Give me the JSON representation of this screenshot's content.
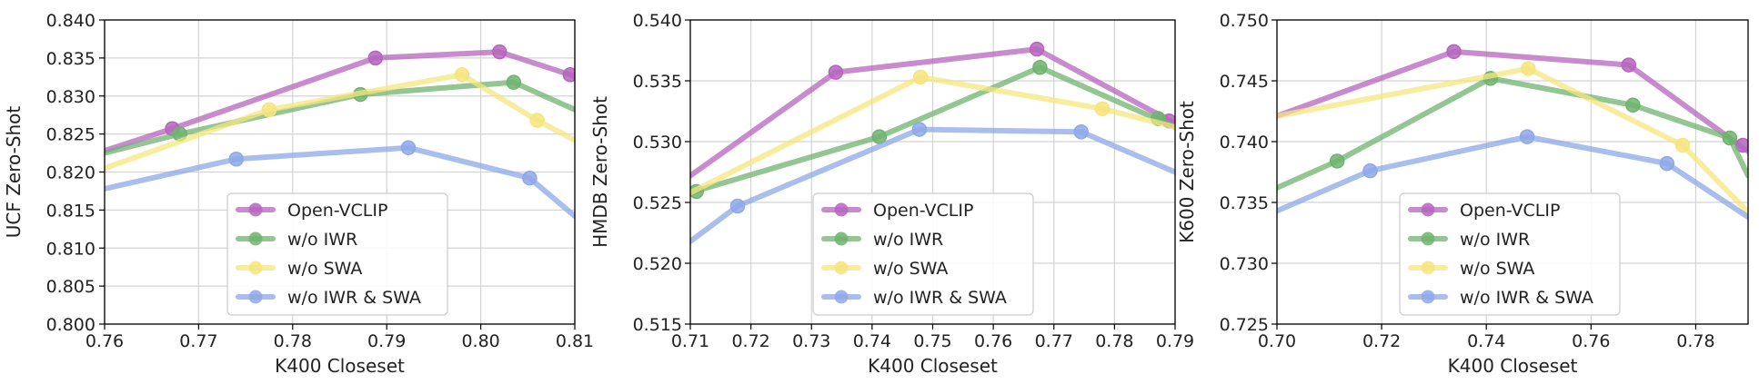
{
  "chart_data": [
    {
      "type": "line",
      "xlabel": "K400 Closeset",
      "ylabel": "UCF Zero-Shot",
      "xlim": [
        0.76,
        0.81
      ],
      "ylim": [
        0.8,
        0.84
      ],
      "xticks": [
        0.76,
        0.77,
        0.78,
        0.79,
        0.8,
        0.81
      ],
      "xtick_labels": [
        "0.76",
        "0.77",
        "0.78",
        "0.79",
        "0.80",
        "0.81"
      ],
      "yticks": [
        0.8,
        0.805,
        0.81,
        0.815,
        0.82,
        0.825,
        0.83,
        0.835,
        0.84
      ],
      "ytick_labels": [
        "0.800",
        "0.805",
        "0.810",
        "0.815",
        "0.820",
        "0.825",
        "0.830",
        "0.835",
        "0.840"
      ],
      "grid": true,
      "legend_position": "lower-center",
      "series": [
        {
          "name": "Open-VCLIP",
          "color": "#b565bd",
          "line": [
            [
              0.76,
              0.8228
            ],
            [
              0.7672,
              0.8257
            ],
            [
              0.7888,
              0.835
            ],
            [
              0.802,
              0.8358
            ],
            [
              0.8095,
              0.8328
            ],
            [
              0.811,
              0.832
            ]
          ],
          "points": [
            [
              0.7672,
              0.8257
            ],
            [
              0.7888,
              0.835
            ],
            [
              0.802,
              0.8358
            ],
            [
              0.8095,
              0.8328
            ]
          ]
        },
        {
          "name": "w/o IWR",
          "color": "#6fb36f",
          "line": [
            [
              0.76,
              0.8225
            ],
            [
              0.768,
              0.825
            ],
            [
              0.7872,
              0.8302
            ],
            [
              0.8035,
              0.8318
            ],
            [
              0.81,
              0.8282
            ]
          ],
          "points": [
            [
              0.768,
              0.825
            ],
            [
              0.7872,
              0.8302
            ],
            [
              0.8035,
              0.8318
            ]
          ]
        },
        {
          "name": "w/o SWA",
          "color": "#f6e57e",
          "line": [
            [
              0.76,
              0.8205
            ],
            [
              0.7775,
              0.8282
            ],
            [
              0.798,
              0.8328
            ],
            [
              0.806,
              0.8268
            ],
            [
              0.81,
              0.8242
            ]
          ],
          "points": [
            [
              0.7775,
              0.8282
            ],
            [
              0.798,
              0.8328
            ],
            [
              0.806,
              0.8268
            ]
          ]
        },
        {
          "name": "w/o IWR & SWA",
          "color": "#8ea8e8",
          "line": [
            [
              0.76,
              0.8178
            ],
            [
              0.774,
              0.8217
            ],
            [
              0.7923,
              0.8232
            ],
            [
              0.8052,
              0.8192
            ],
            [
              0.81,
              0.8142
            ]
          ],
          "points": [
            [
              0.774,
              0.8217
            ],
            [
              0.7923,
              0.8232
            ],
            [
              0.8052,
              0.8192
            ]
          ]
        }
      ]
    },
    {
      "type": "line",
      "xlabel": "K400 Closeset",
      "ylabel": "HMDB Zero-Shot",
      "xlim": [
        0.71,
        0.79
      ],
      "ylim": [
        0.515,
        0.54
      ],
      "xticks": [
        0.71,
        0.72,
        0.73,
        0.74,
        0.75,
        0.76,
        0.77,
        0.78,
        0.79
      ],
      "xtick_labels": [
        "0.71",
        "0.72",
        "0.73",
        "0.74",
        "0.75",
        "0.76",
        "0.77",
        "0.78",
        "0.79"
      ],
      "yticks": [
        0.515,
        0.52,
        0.525,
        0.53,
        0.535,
        0.54
      ],
      "ytick_labels": [
        "0.515",
        "0.520",
        "0.525",
        "0.530",
        "0.535",
        "0.540"
      ],
      "grid": true,
      "legend_position": "lower-center",
      "series": [
        {
          "name": "Open-VCLIP",
          "color": "#b565bd",
          "line": [
            [
              0.71,
              0.5272
            ],
            [
              0.734,
              0.5357
            ],
            [
              0.7672,
              0.5376
            ],
            [
              0.79,
              0.5315
            ]
          ],
          "points": [
            [
              0.734,
              0.5357
            ],
            [
              0.7672,
              0.5376
            ],
            [
              0.789,
              0.5317
            ]
          ]
        },
        {
          "name": "w/o IWR",
          "color": "#6fb36f",
          "line": [
            [
              0.71,
              0.5258
            ],
            [
              0.7412,
              0.5304
            ],
            [
              0.7677,
              0.5361
            ],
            [
              0.79,
              0.5312
            ]
          ],
          "points": [
            [
              0.711,
              0.5259
            ],
            [
              0.7412,
              0.5304
            ],
            [
              0.7677,
              0.5361
            ],
            [
              0.7872,
              0.5319
            ]
          ]
        },
        {
          "name": "w/o SWA",
          "color": "#f6e57e",
          "line": [
            [
              0.71,
              0.5258
            ],
            [
              0.748,
              0.5353
            ],
            [
              0.778,
              0.5327
            ],
            [
              0.79,
              0.5312
            ]
          ],
          "points": [
            [
              0.748,
              0.5353
            ],
            [
              0.778,
              0.5327
            ]
          ]
        },
        {
          "name": "w/o IWR & SWA",
          "color": "#8ea8e8",
          "line": [
            [
              0.71,
              0.5218
            ],
            [
              0.7178,
              0.5247
            ],
            [
              0.7478,
              0.531
            ],
            [
              0.7745,
              0.5308
            ],
            [
              0.79,
              0.5275
            ]
          ],
          "points": [
            [
              0.7178,
              0.5247
            ],
            [
              0.7478,
              0.531
            ],
            [
              0.7745,
              0.5308
            ]
          ]
        }
      ]
    },
    {
      "type": "line",
      "xlabel": "K400 Closeset",
      "ylabel": "K600 Zero-Shot",
      "xlim": [
        0.7,
        0.79
      ],
      "ylim": [
        0.725,
        0.75
      ],
      "xticks": [
        0.7,
        0.72,
        0.74,
        0.76,
        0.78
      ],
      "xtick_labels": [
        "0.70",
        "0.72",
        "0.74",
        "0.76",
        "0.78"
      ],
      "yticks": [
        0.725,
        0.73,
        0.735,
        0.74,
        0.745,
        0.75
      ],
      "ytick_labels": [
        "0.725",
        "0.730",
        "0.735",
        "0.740",
        "0.745",
        "0.750"
      ],
      "grid": true,
      "legend_position": "lower-center",
      "series": [
        {
          "name": "Open-VCLIP",
          "color": "#b565bd",
          "line": [
            [
              0.7,
              0.7421
            ],
            [
              0.7338,
              0.7474
            ],
            [
              0.7672,
              0.7463
            ],
            [
              0.79,
              0.7392
            ]
          ],
          "points": [
            [
              0.7338,
              0.7474
            ],
            [
              0.7672,
              0.7463
            ],
            [
              0.789,
              0.7397
            ]
          ]
        },
        {
          "name": "w/o IWR",
          "color": "#6fb36f",
          "line": [
            [
              0.7,
              0.7362
            ],
            [
              0.7115,
              0.7384
            ],
            [
              0.7408,
              0.7452
            ],
            [
              0.768,
              0.743
            ],
            [
              0.7865,
              0.7403
            ],
            [
              0.79,
              0.7372
            ]
          ],
          "points": [
            [
              0.7115,
              0.7384
            ],
            [
              0.7408,
              0.7452
            ],
            [
              0.768,
              0.743
            ],
            [
              0.7865,
              0.7403
            ]
          ]
        },
        {
          "name": "w/o SWA",
          "color": "#f6e57e",
          "line": [
            [
              0.7,
              0.7421
            ],
            [
              0.748,
              0.746
            ],
            [
              0.7775,
              0.7397
            ],
            [
              0.79,
              0.7342
            ]
          ],
          "points": [
            [
              0.748,
              0.746
            ],
            [
              0.7775,
              0.7397
            ]
          ]
        },
        {
          "name": "w/o IWR & SWA",
          "color": "#8ea8e8",
          "line": [
            [
              0.7,
              0.7343
            ],
            [
              0.7178,
              0.7376
            ],
            [
              0.7478,
              0.7404
            ],
            [
              0.7745,
              0.7382
            ],
            [
              0.79,
              0.7338
            ]
          ],
          "points": [
            [
              0.7178,
              0.7376
            ],
            [
              0.7478,
              0.7404
            ],
            [
              0.7745,
              0.7382
            ]
          ]
        }
      ]
    }
  ]
}
